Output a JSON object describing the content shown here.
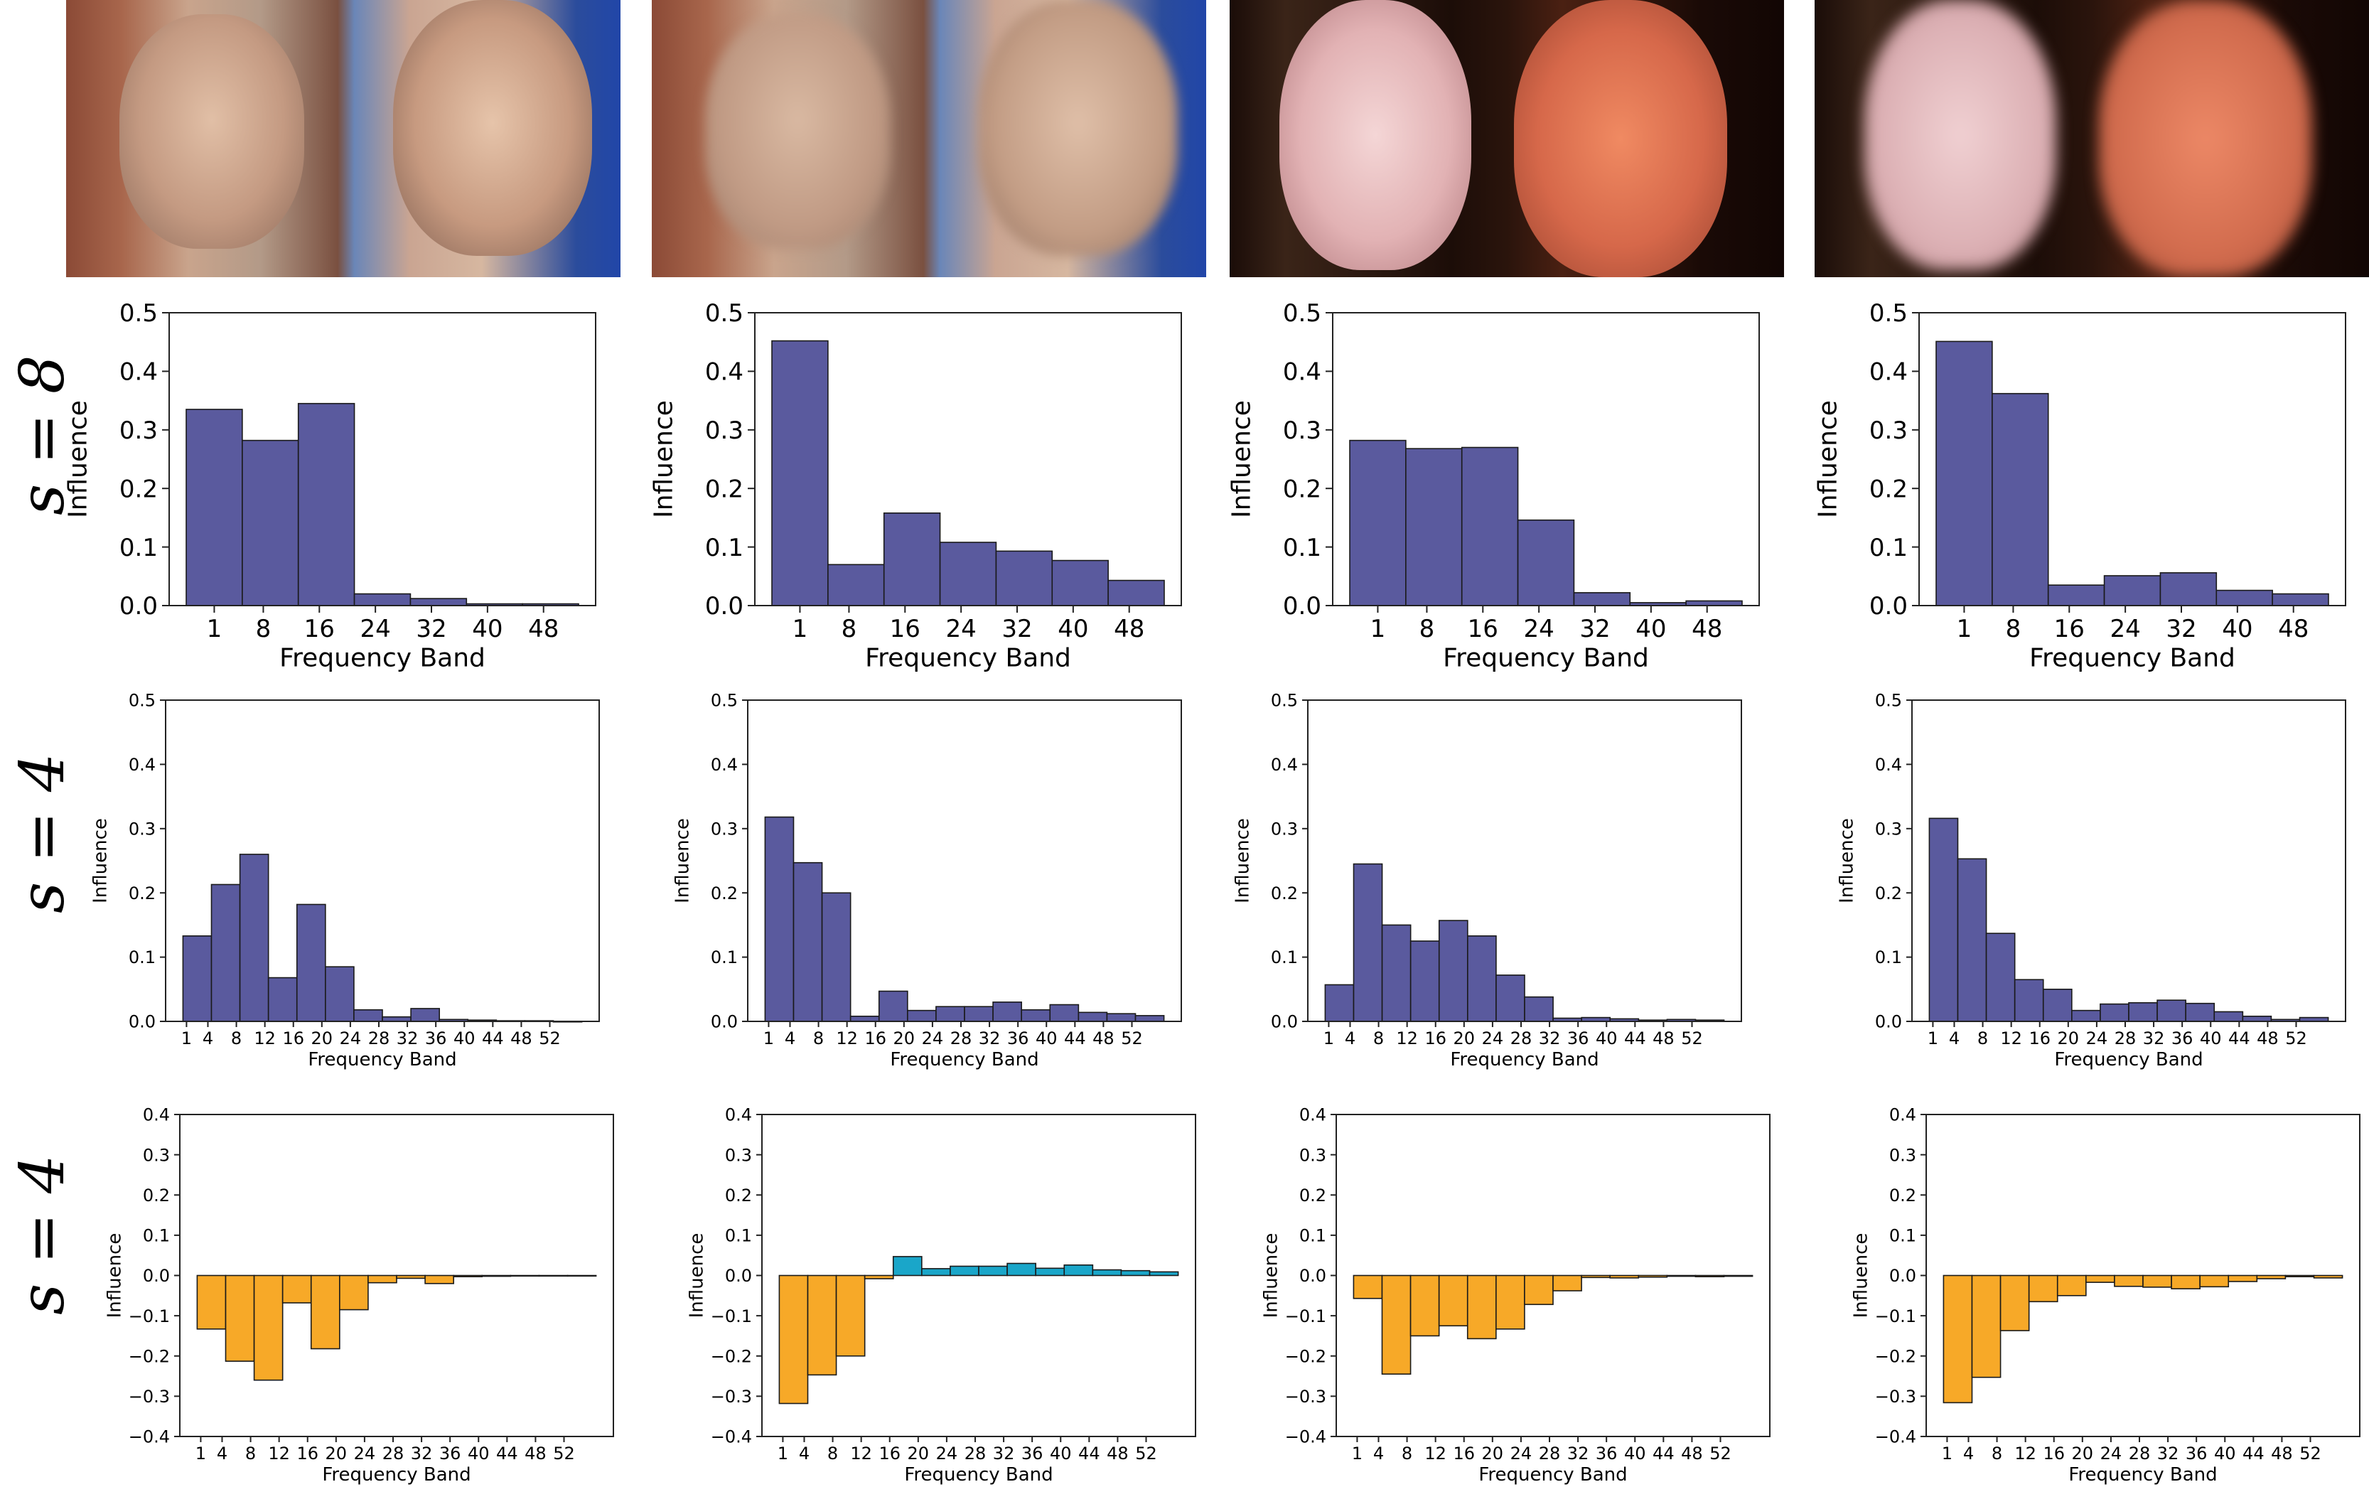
{
  "row_labels": [
    "s = 8",
    "s = 4",
    "s = 4"
  ],
  "image_pairs": [
    {
      "subject": "man-with-glasses",
      "version": "original"
    },
    {
      "subject": "man-with-glasses",
      "version": "blurred"
    },
    {
      "subject": "red-haired-man",
      "version": "original"
    },
    {
      "subject": "red-haired-man",
      "version": "blurred"
    }
  ],
  "colors": {
    "bar_main": "#5a5a9e",
    "bar_negative": "#f7a928",
    "bar_positive": "#1aa6c9",
    "edge": "#1a1a1a"
  },
  "chart_data": [
    {
      "id": "r1c1",
      "type": "bar",
      "row": 0,
      "col": 0,
      "xlabel": "Frequency Band",
      "ylabel": "Influence",
      "ylim": [
        0,
        0.5
      ],
      "yticks": [
        "0.0",
        "0.1",
        "0.2",
        "0.3",
        "0.4",
        "0.5"
      ],
      "xticks": [
        "1",
        "8",
        "16",
        "24",
        "32",
        "40",
        "48"
      ],
      "values": [
        0.335,
        0.282,
        0.345,
        0.02,
        0.012,
        0.003,
        0.003
      ]
    },
    {
      "id": "r1c2",
      "type": "bar",
      "row": 0,
      "col": 1,
      "xlabel": "Frequency Band",
      "ylabel": "Influence",
      "ylim": [
        0,
        0.5
      ],
      "yticks": [
        "0.0",
        "0.1",
        "0.2",
        "0.3",
        "0.4",
        "0.5"
      ],
      "xticks": [
        "1",
        "8",
        "16",
        "24",
        "32",
        "40",
        "48"
      ],
      "values": [
        0.452,
        0.07,
        0.158,
        0.108,
        0.093,
        0.077,
        0.043
      ]
    },
    {
      "id": "r1c3",
      "type": "bar",
      "row": 0,
      "col": 2,
      "xlabel": "Frequency Band",
      "ylabel": "Influence",
      "ylim": [
        0,
        0.5
      ],
      "yticks": [
        "0.0",
        "0.1",
        "0.2",
        "0.3",
        "0.4",
        "0.5"
      ],
      "xticks": [
        "1",
        "8",
        "16",
        "24",
        "32",
        "40",
        "48"
      ],
      "values": [
        0.282,
        0.268,
        0.27,
        0.146,
        0.022,
        0.005,
        0.008
      ]
    },
    {
      "id": "r1c4",
      "type": "bar",
      "row": 0,
      "col": 3,
      "xlabel": "Frequency Band",
      "ylabel": "Influence",
      "ylim": [
        0,
        0.5
      ],
      "yticks": [
        "0.0",
        "0.1",
        "0.2",
        "0.3",
        "0.4",
        "0.5"
      ],
      "xticks": [
        "1",
        "8",
        "16",
        "24",
        "32",
        "40",
        "48"
      ],
      "values": [
        0.451,
        0.362,
        0.035,
        0.051,
        0.056,
        0.026,
        0.02
      ]
    },
    {
      "id": "r2c1",
      "type": "bar",
      "row": 1,
      "col": 0,
      "xlabel": "Frequency Band",
      "ylabel": "Influence",
      "ylim": [
        0,
        0.5
      ],
      "yticks": [
        "0.0",
        "0.1",
        "0.2",
        "0.3",
        "0.4",
        "0.5"
      ],
      "xticks": [
        "1",
        "4",
        "8",
        "12",
        "16",
        "20",
        "24",
        "28",
        "32",
        "36",
        "40",
        "44",
        "48",
        "52"
      ],
      "values": [
        0.133,
        0.213,
        0.26,
        0.068,
        0.182,
        0.085,
        0.018,
        0.007,
        0.02,
        0.003,
        0.002,
        0.001,
        0.001,
        0.0
      ]
    },
    {
      "id": "r2c2",
      "type": "bar",
      "row": 1,
      "col": 1,
      "xlabel": "Frequency Band",
      "ylabel": "Influence",
      "ylim": [
        0,
        0.5
      ],
      "yticks": [
        "0.0",
        "0.1",
        "0.2",
        "0.3",
        "0.4",
        "0.5"
      ],
      "xticks": [
        "1",
        "4",
        "8",
        "12",
        "16",
        "20",
        "24",
        "28",
        "32",
        "36",
        "40",
        "44",
        "48",
        "52"
      ],
      "values": [
        0.318,
        0.247,
        0.2,
        0.008,
        0.047,
        0.017,
        0.023,
        0.023,
        0.03,
        0.018,
        0.026,
        0.014,
        0.012,
        0.009
      ]
    },
    {
      "id": "r2c3",
      "type": "bar",
      "row": 1,
      "col": 2,
      "xlabel": "Frequency Band",
      "ylabel": "Influence",
      "ylim": [
        0,
        0.5
      ],
      "yticks": [
        "0.0",
        "0.1",
        "0.2",
        "0.3",
        "0.4",
        "0.5"
      ],
      "xticks": [
        "1",
        "4",
        "8",
        "12",
        "16",
        "20",
        "24",
        "28",
        "32",
        "36",
        "40",
        "44",
        "48",
        "52"
      ],
      "values": [
        0.057,
        0.245,
        0.15,
        0.125,
        0.157,
        0.133,
        0.072,
        0.038,
        0.005,
        0.006,
        0.004,
        0.002,
        0.003,
        0.002
      ]
    },
    {
      "id": "r2c4",
      "type": "bar",
      "row": 1,
      "col": 3,
      "xlabel": "Frequency Band",
      "ylabel": "Influence",
      "ylim": [
        0,
        0.5
      ],
      "yticks": [
        "0.0",
        "0.1",
        "0.2",
        "0.3",
        "0.4",
        "0.5"
      ],
      "xticks": [
        "1",
        "4",
        "8",
        "12",
        "16",
        "20",
        "24",
        "28",
        "32",
        "36",
        "40",
        "44",
        "48",
        "52"
      ],
      "values": [
        0.316,
        0.253,
        0.137,
        0.065,
        0.05,
        0.017,
        0.027,
        0.029,
        0.033,
        0.028,
        0.015,
        0.008,
        0.003,
        0.006
      ]
    },
    {
      "id": "r3c1",
      "type": "bar",
      "row": 2,
      "col": 0,
      "xlabel": "Frequency Band",
      "ylabel": "Influence",
      "ylim": [
        -0.4,
        0.4
      ],
      "yticks": [
        "−0.4",
        "−0.3",
        "−0.2",
        "−0.1",
        "0.0",
        "0.1",
        "0.2",
        "0.3",
        "0.4"
      ],
      "xticks": [
        "1",
        "4",
        "8",
        "12",
        "16",
        "20",
        "24",
        "28",
        "32",
        "36",
        "40",
        "44",
        "48",
        "52"
      ],
      "values": [
        -0.133,
        -0.213,
        -0.26,
        -0.068,
        -0.182,
        -0.085,
        -0.018,
        -0.007,
        -0.02,
        -0.003,
        -0.002,
        -0.001,
        -0.001,
        0.0
      ]
    },
    {
      "id": "r3c2",
      "type": "bar",
      "row": 2,
      "col": 1,
      "xlabel": "Frequency Band",
      "ylabel": "Influence",
      "ylim": [
        -0.4,
        0.4
      ],
      "yticks": [
        "−0.4",
        "−0.3",
        "−0.2",
        "−0.1",
        "0.0",
        "0.1",
        "0.2",
        "0.3",
        "0.4"
      ],
      "xticks": [
        "1",
        "4",
        "8",
        "12",
        "16",
        "20",
        "24",
        "28",
        "32",
        "36",
        "40",
        "44",
        "48",
        "52"
      ],
      "values": [
        -0.318,
        -0.247,
        -0.2,
        -0.008,
        0.047,
        0.017,
        0.023,
        0.023,
        0.03,
        0.018,
        0.026,
        0.014,
        0.012,
        0.009
      ]
    },
    {
      "id": "r3c3",
      "type": "bar",
      "row": 2,
      "col": 2,
      "xlabel": "Frequency Band",
      "ylabel": "Influence",
      "ylim": [
        -0.4,
        0.4
      ],
      "yticks": [
        "−0.4",
        "−0.3",
        "−0.2",
        "−0.1",
        "0.0",
        "0.1",
        "0.2",
        "0.3",
        "0.4"
      ],
      "xticks": [
        "1",
        "4",
        "8",
        "12",
        "16",
        "20",
        "24",
        "28",
        "32",
        "36",
        "40",
        "44",
        "48",
        "52"
      ],
      "values": [
        -0.057,
        -0.245,
        -0.15,
        -0.125,
        -0.157,
        -0.133,
        -0.072,
        -0.038,
        -0.005,
        -0.006,
        -0.004,
        -0.002,
        -0.003,
        -0.002
      ]
    },
    {
      "id": "r3c4",
      "type": "bar",
      "row": 2,
      "col": 3,
      "xlabel": "Frequency Band",
      "ylabel": "Influence",
      "ylim": [
        -0.4,
        0.4
      ],
      "yticks": [
        "−0.4",
        "−0.3",
        "−0.2",
        "−0.1",
        "0.0",
        "0.1",
        "0.2",
        "0.3",
        "0.4"
      ],
      "xticks": [
        "1",
        "4",
        "8",
        "12",
        "16",
        "20",
        "24",
        "28",
        "32",
        "36",
        "40",
        "44",
        "48",
        "52"
      ],
      "values": [
        -0.316,
        -0.253,
        -0.137,
        -0.065,
        -0.05,
        -0.017,
        -0.027,
        -0.029,
        -0.033,
        -0.028,
        -0.015,
        -0.008,
        -0.003,
        -0.006
      ]
    }
  ]
}
